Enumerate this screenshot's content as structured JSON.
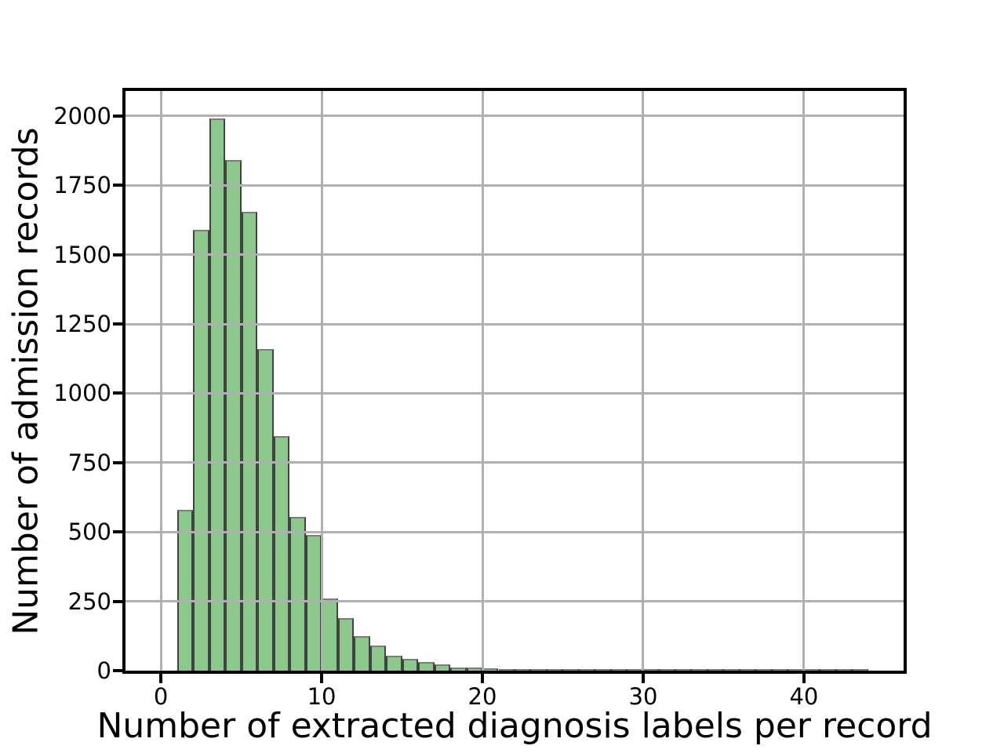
{
  "figure": {
    "xlabel": "Number of extracted diagnosis labels per record",
    "ylabel": "Number of admission records"
  },
  "chart_data": {
    "type": "bar",
    "subtype": "histogram",
    "title": "",
    "xlabel": "Number of extracted diagnosis labels per record",
    "ylabel": "Number of admission records",
    "bin_start": 1,
    "bin_width": 1,
    "x": [
      1,
      2,
      3,
      4,
      5,
      6,
      7,
      8,
      9,
      10,
      11,
      12,
      13,
      14,
      15,
      16,
      17,
      18,
      19,
      20,
      21,
      22,
      23,
      24,
      25,
      26,
      27,
      28,
      29,
      30,
      31,
      32,
      33,
      34,
      35,
      36,
      37,
      38,
      39,
      40,
      41,
      42,
      43
    ],
    "values": [
      580,
      1590,
      1990,
      1840,
      1655,
      1160,
      845,
      555,
      490,
      260,
      190,
      125,
      90,
      55,
      42,
      30,
      24,
      11,
      10,
      8,
      6,
      4,
      4,
      3,
      3,
      2,
      2,
      3,
      2,
      1,
      1,
      2,
      2,
      1,
      1,
      1,
      2,
      1,
      1,
      1,
      1,
      2,
      2
    ],
    "xticks": [
      0,
      10,
      20,
      30,
      40
    ],
    "yticks": [
      0,
      250,
      500,
      750,
      1000,
      1250,
      1500,
      1750,
      2000
    ],
    "xlim": [
      -2.2,
      46.2
    ],
    "ylim": [
      0,
      2090
    ],
    "grid": true,
    "grid_above_bars": true,
    "legend": "none",
    "bar_fill_color": "#8cc88c",
    "bar_edge_color": "#424242",
    "bar_top_edge_color": "#7d7d7d",
    "grid_color": "#b0b0b0",
    "axis_color": "#000000"
  }
}
